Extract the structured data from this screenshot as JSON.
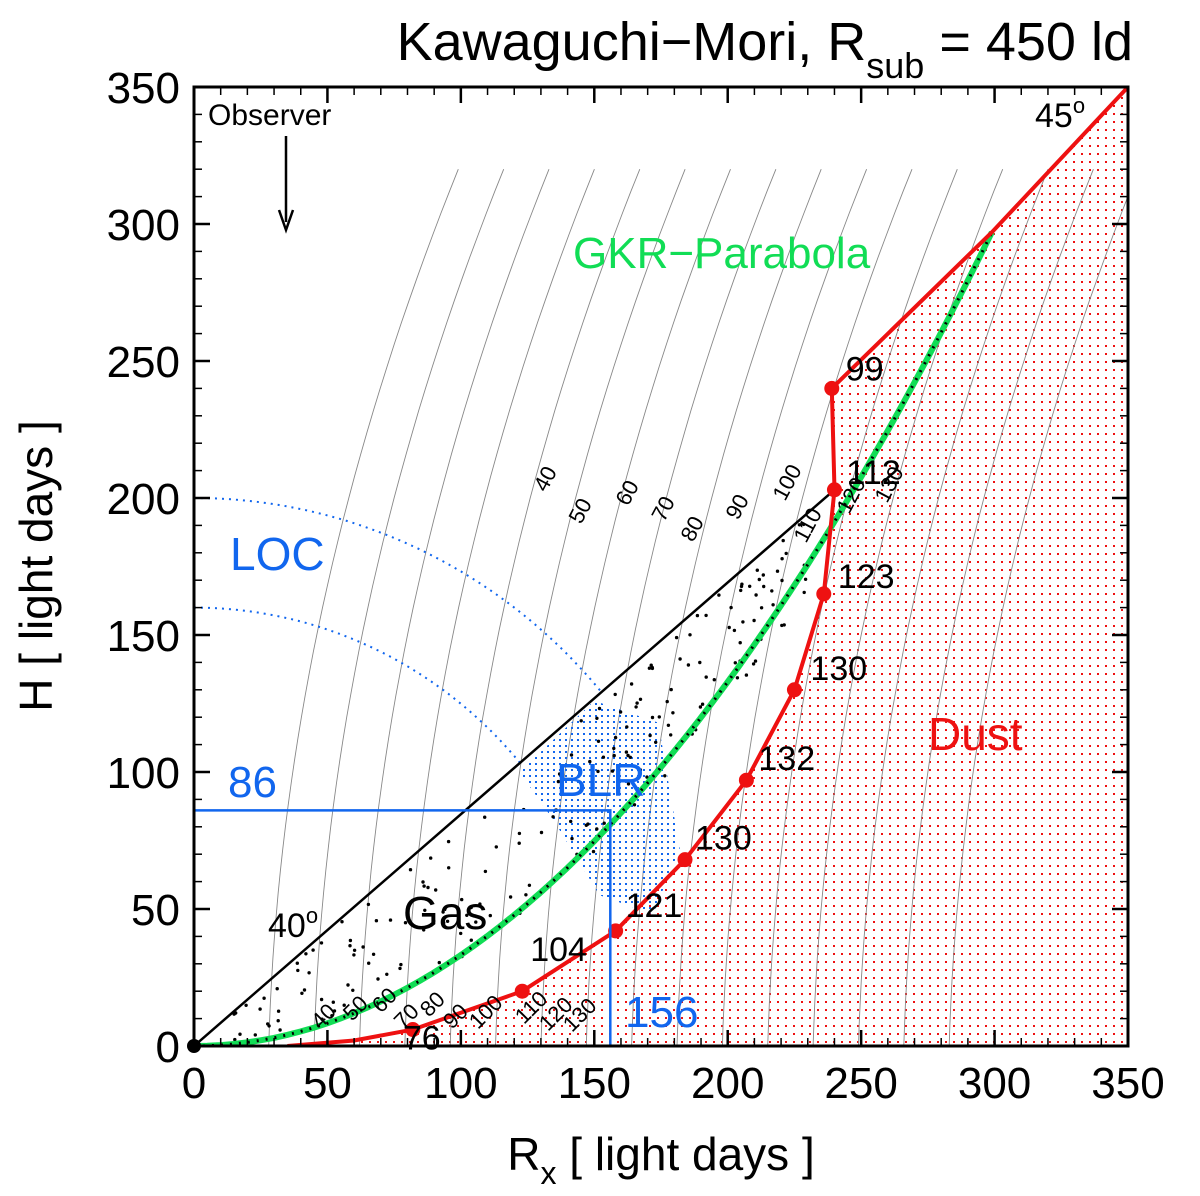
{
  "chart_data": {
    "type": "line",
    "title": "Kawaguchi−Mori, R",
    "title_sub": "sub",
    "title_rest": " = 450 ld",
    "xlabel_main": "R",
    "xlabel_sub": "x",
    "xlabel_rest": "  [ light days ]",
    "ylabel": "H  [ light days ]",
    "xlim": [
      0,
      350
    ],
    "ylim": [
      0,
      350
    ],
    "xticks": [
      "0",
      "50",
      "100",
      "150",
      "200",
      "250",
      "300",
      "350"
    ],
    "yticks": [
      "0",
      "50",
      "100",
      "150",
      "200",
      "250",
      "300",
      "350"
    ],
    "grid": false,
    "colors": {
      "dust": "#ee1111",
      "blr": "#1166ee",
      "parabola": "#11dd55",
      "gas": "#000000",
      "isodelay": "#888888"
    },
    "labels": {
      "observer": "Observer",
      "parabola": "GKR−Parabola",
      "loc": "LOC",
      "blr": "BLR",
      "gas": "Gas",
      "dust": "Dust",
      "angle_gas": "40",
      "angle_dust": "45",
      "degree_mark": "o",
      "blr_height": "86",
      "blr_radius": "156"
    },
    "dust_boundary": {
      "points": [
        {
          "x": 82,
          "y": 6,
          "label": "76"
        },
        {
          "x": 123,
          "y": 20,
          "label": "104"
        },
        {
          "x": 158,
          "y": 42,
          "label": "121"
        },
        {
          "x": 184,
          "y": 68,
          "label": "130"
        },
        {
          "x": 207,
          "y": 97,
          "label": "132"
        },
        {
          "x": 225,
          "y": 130,
          "label": "130"
        },
        {
          "x": 236,
          "y": 165,
          "label": "123"
        },
        {
          "x": 240,
          "y": 203,
          "label": "112"
        },
        {
          "x": 239,
          "y": 240,
          "label": "99"
        }
      ]
    },
    "isodelay_labels": [
      "40",
      "50",
      "60",
      "70",
      "80",
      "90",
      "100",
      "110",
      "120",
      "130"
    ],
    "lower_isodelay_labels": [
      "40",
      "50",
      "60",
      "70",
      "80",
      "90",
      "100",
      "110",
      "120",
      "130"
    ]
  }
}
